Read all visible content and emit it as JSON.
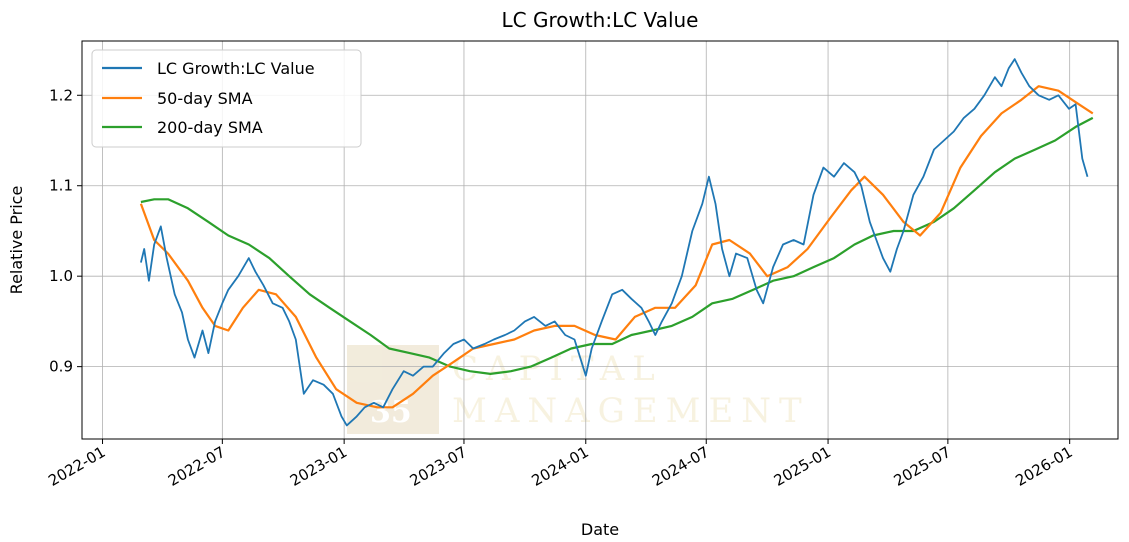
{
  "chart_data": {
    "type": "line",
    "title": "LC Growth:LC Value",
    "xlabel": "Date",
    "ylabel": "Relative Price",
    "x_ticks": [
      "2022-01",
      "2022-07",
      "2023-01",
      "2023-07",
      "2024-01",
      "2024-07",
      "2025-01",
      "2025-07",
      "2026-01"
    ],
    "y_ticks": [
      "0.9",
      "1.0",
      "1.1",
      "1.2"
    ],
    "xlim": [
      "2021-12-01",
      "2026-03-15"
    ],
    "ylim": [
      0.82,
      1.26
    ],
    "grid": true,
    "legend_position": "top-left",
    "series": [
      {
        "name": "LC Growth:LC Value",
        "color": "#1f77b4",
        "points": [
          [
            "2022-02-28",
            1.015
          ],
          [
            "2022-03-05",
            1.03
          ],
          [
            "2022-03-12",
            0.995
          ],
          [
            "2022-03-20",
            1.035
          ],
          [
            "2022-03-30",
            1.055
          ],
          [
            "2022-04-08",
            1.02
          ],
          [
            "2022-04-20",
            0.98
          ],
          [
            "2022-05-01",
            0.96
          ],
          [
            "2022-05-10",
            0.93
          ],
          [
            "2022-05-20",
            0.91
          ],
          [
            "2022-06-01",
            0.94
          ],
          [
            "2022-06-10",
            0.915
          ],
          [
            "2022-06-20",
            0.95
          ],
          [
            "2022-07-01",
            0.97
          ],
          [
            "2022-07-10",
            0.985
          ],
          [
            "2022-07-25",
            1.0
          ],
          [
            "2022-08-10",
            1.02
          ],
          [
            "2022-08-20",
            1.005
          ],
          [
            "2022-09-01",
            0.99
          ],
          [
            "2022-09-15",
            0.97
          ],
          [
            "2022-09-30",
            0.965
          ],
          [
            "2022-10-10",
            0.95
          ],
          [
            "2022-10-20",
            0.93
          ],
          [
            "2022-11-01",
            0.87
          ],
          [
            "2022-11-15",
            0.885
          ],
          [
            "2022-12-01",
            0.88
          ],
          [
            "2022-12-15",
            0.87
          ],
          [
            "2022-12-28",
            0.845
          ],
          [
            "2023-01-05",
            0.835
          ],
          [
            "2023-01-20",
            0.845
          ],
          [
            "2023-02-01",
            0.855
          ],
          [
            "2023-02-15",
            0.86
          ],
          [
            "2023-03-01",
            0.855
          ],
          [
            "2023-03-15",
            0.875
          ],
          [
            "2023-04-01",
            0.895
          ],
          [
            "2023-04-15",
            0.89
          ],
          [
            "2023-05-01",
            0.9
          ],
          [
            "2023-05-15",
            0.9
          ],
          [
            "2023-06-01",
            0.915
          ],
          [
            "2023-06-15",
            0.925
          ],
          [
            "2023-07-01",
            0.93
          ],
          [
            "2023-07-15",
            0.92
          ],
          [
            "2023-08-01",
            0.925
          ],
          [
            "2023-08-15",
            0.93
          ],
          [
            "2023-09-01",
            0.935
          ],
          [
            "2023-09-15",
            0.94
          ],
          [
            "2023-10-01",
            0.95
          ],
          [
            "2023-10-15",
            0.955
          ],
          [
            "2023-11-01",
            0.945
          ],
          [
            "2023-11-15",
            0.95
          ],
          [
            "2023-12-01",
            0.935
          ],
          [
            "2023-12-15",
            0.93
          ],
          [
            "2024-01-01",
            0.89
          ],
          [
            "2024-01-10",
            0.92
          ],
          [
            "2024-01-25",
            0.95
          ],
          [
            "2024-02-10",
            0.98
          ],
          [
            "2024-02-25",
            0.985
          ],
          [
            "2024-03-10",
            0.975
          ],
          [
            "2024-03-25",
            0.965
          ],
          [
            "2024-04-05",
            0.95
          ],
          [
            "2024-04-15",
            0.935
          ],
          [
            "2024-04-25",
            0.95
          ],
          [
            "2024-05-10",
            0.97
          ],
          [
            "2024-05-25",
            1.0
          ],
          [
            "2024-06-10",
            1.05
          ],
          [
            "2024-06-25",
            1.08
          ],
          [
            "2024-07-05",
            1.11
          ],
          [
            "2024-07-15",
            1.08
          ],
          [
            "2024-07-25",
            1.03
          ],
          [
            "2024-08-05",
            1.0
          ],
          [
            "2024-08-15",
            1.025
          ],
          [
            "2024-09-01",
            1.02
          ],
          [
            "2024-09-15",
            0.985
          ],
          [
            "2024-09-25",
            0.97
          ],
          [
            "2024-10-10",
            1.01
          ],
          [
            "2024-10-25",
            1.035
          ],
          [
            "2024-11-10",
            1.04
          ],
          [
            "2024-11-25",
            1.035
          ],
          [
            "2024-12-10",
            1.09
          ],
          [
            "2024-12-25",
            1.12
          ],
          [
            "2025-01-10",
            1.11
          ],
          [
            "2025-01-25",
            1.125
          ],
          [
            "2025-02-10",
            1.115
          ],
          [
            "2025-02-20",
            1.1
          ],
          [
            "2025-03-05",
            1.06
          ],
          [
            "2025-03-15",
            1.04
          ],
          [
            "2025-03-25",
            1.02
          ],
          [
            "2025-04-05",
            1.005
          ],
          [
            "2025-04-15",
            1.03
          ],
          [
            "2025-04-25",
            1.05
          ],
          [
            "2025-05-10",
            1.09
          ],
          [
            "2025-05-25",
            1.11
          ],
          [
            "2025-06-10",
            1.14
          ],
          [
            "2025-06-25",
            1.15
          ],
          [
            "2025-07-10",
            1.16
          ],
          [
            "2025-07-25",
            1.175
          ],
          [
            "2025-08-10",
            1.185
          ],
          [
            "2025-08-25",
            1.2
          ],
          [
            "2025-09-10",
            1.22
          ],
          [
            "2025-09-20",
            1.21
          ],
          [
            "2025-10-01",
            1.23
          ],
          [
            "2025-10-10",
            1.24
          ],
          [
            "2025-10-20",
            1.225
          ],
          [
            "2025-11-01",
            1.21
          ],
          [
            "2025-11-15",
            1.2
          ],
          [
            "2025-12-01",
            1.195
          ],
          [
            "2025-12-15",
            1.2
          ],
          [
            "2025-12-31",
            1.185
          ],
          [
            "2026-01-10",
            1.19
          ],
          [
            "2026-01-20",
            1.13
          ],
          [
            "2026-01-28",
            1.11
          ]
        ]
      },
      {
        "name": "50-day SMA",
        "color": "#ff7f0e",
        "points": [
          [
            "2022-02-28",
            1.08
          ],
          [
            "2022-03-20",
            1.04
          ],
          [
            "2022-04-10",
            1.025
          ],
          [
            "2022-05-10",
            0.995
          ],
          [
            "2022-06-01",
            0.965
          ],
          [
            "2022-06-20",
            0.945
          ],
          [
            "2022-07-10",
            0.94
          ],
          [
            "2022-08-01",
            0.965
          ],
          [
            "2022-08-25",
            0.985
          ],
          [
            "2022-09-20",
            0.98
          ],
          [
            "2022-10-20",
            0.955
          ],
          [
            "2022-11-20",
            0.91
          ],
          [
            "2022-12-20",
            0.875
          ],
          [
            "2023-01-20",
            0.86
          ],
          [
            "2023-02-20",
            0.855
          ],
          [
            "2023-03-15",
            0.855
          ],
          [
            "2023-04-15",
            0.87
          ],
          [
            "2023-05-15",
            0.89
          ],
          [
            "2023-06-15",
            0.905
          ],
          [
            "2023-07-15",
            0.92
          ],
          [
            "2023-08-15",
            0.925
          ],
          [
            "2023-09-15",
            0.93
          ],
          [
            "2023-10-15",
            0.94
          ],
          [
            "2023-11-15",
            0.945
          ],
          [
            "2023-12-15",
            0.945
          ],
          [
            "2024-01-15",
            0.935
          ],
          [
            "2024-02-15",
            0.93
          ],
          [
            "2024-03-15",
            0.955
          ],
          [
            "2024-04-15",
            0.965
          ],
          [
            "2024-05-15",
            0.965
          ],
          [
            "2024-06-15",
            0.99
          ],
          [
            "2024-07-10",
            1.035
          ],
          [
            "2024-08-05",
            1.04
          ],
          [
            "2024-09-05",
            1.025
          ],
          [
            "2024-10-01",
            1.0
          ],
          [
            "2024-11-01",
            1.01
          ],
          [
            "2024-12-01",
            1.03
          ],
          [
            "2025-01-05",
            1.065
          ],
          [
            "2025-02-05",
            1.095
          ],
          [
            "2025-02-25",
            1.11
          ],
          [
            "2025-03-25",
            1.09
          ],
          [
            "2025-04-25",
            1.06
          ],
          [
            "2025-05-20",
            1.045
          ],
          [
            "2025-06-20",
            1.07
          ],
          [
            "2025-07-20",
            1.12
          ],
          [
            "2025-08-20",
            1.155
          ],
          [
            "2025-09-20",
            1.18
          ],
          [
            "2025-10-20",
            1.195
          ],
          [
            "2025-11-15",
            1.21
          ],
          [
            "2025-12-15",
            1.205
          ],
          [
            "2026-01-15",
            1.19
          ],
          [
            "2026-02-05",
            1.18
          ]
        ]
      },
      {
        "name": "200-day SMA",
        "color": "#2ca02c",
        "points": [
          [
            "2022-02-28",
            1.082
          ],
          [
            "2022-03-20",
            1.085
          ],
          [
            "2022-04-10",
            1.085
          ],
          [
            "2022-05-10",
            1.075
          ],
          [
            "2022-06-10",
            1.06
          ],
          [
            "2022-07-10",
            1.045
          ],
          [
            "2022-08-10",
            1.035
          ],
          [
            "2022-09-10",
            1.02
          ],
          [
            "2022-10-10",
            1.0
          ],
          [
            "2022-11-10",
            0.98
          ],
          [
            "2022-12-10",
            0.965
          ],
          [
            "2023-01-10",
            0.95
          ],
          [
            "2023-02-10",
            0.935
          ],
          [
            "2023-03-10",
            0.92
          ],
          [
            "2023-04-10",
            0.915
          ],
          [
            "2023-05-10",
            0.91
          ],
          [
            "2023-06-10",
            0.9
          ],
          [
            "2023-07-10",
            0.895
          ],
          [
            "2023-08-10",
            0.892
          ],
          [
            "2023-09-10",
            0.895
          ],
          [
            "2023-10-10",
            0.9
          ],
          [
            "2023-11-10",
            0.91
          ],
          [
            "2023-12-10",
            0.92
          ],
          [
            "2024-01-10",
            0.925
          ],
          [
            "2024-02-10",
            0.925
          ],
          [
            "2024-03-10",
            0.935
          ],
          [
            "2024-04-10",
            0.94
          ],
          [
            "2024-05-10",
            0.945
          ],
          [
            "2024-06-10",
            0.955
          ],
          [
            "2024-07-10",
            0.97
          ],
          [
            "2024-08-10",
            0.975
          ],
          [
            "2024-09-10",
            0.985
          ],
          [
            "2024-10-10",
            0.995
          ],
          [
            "2024-11-10",
            1.0
          ],
          [
            "2024-12-10",
            1.01
          ],
          [
            "2025-01-10",
            1.02
          ],
          [
            "2025-02-10",
            1.035
          ],
          [
            "2025-03-10",
            1.045
          ],
          [
            "2025-04-10",
            1.05
          ],
          [
            "2025-05-10",
            1.05
          ],
          [
            "2025-06-10",
            1.06
          ],
          [
            "2025-07-10",
            1.075
          ],
          [
            "2025-08-10",
            1.095
          ],
          [
            "2025-09-10",
            1.115
          ],
          [
            "2025-10-10",
            1.13
          ],
          [
            "2025-11-10",
            1.14
          ],
          [
            "2025-12-10",
            1.15
          ],
          [
            "2026-01-10",
            1.165
          ],
          [
            "2026-02-05",
            1.175
          ]
        ]
      }
    ]
  },
  "watermark": {
    "number": "35",
    "line1": "CAPITAL",
    "line2": "MANAGEMENT"
  }
}
